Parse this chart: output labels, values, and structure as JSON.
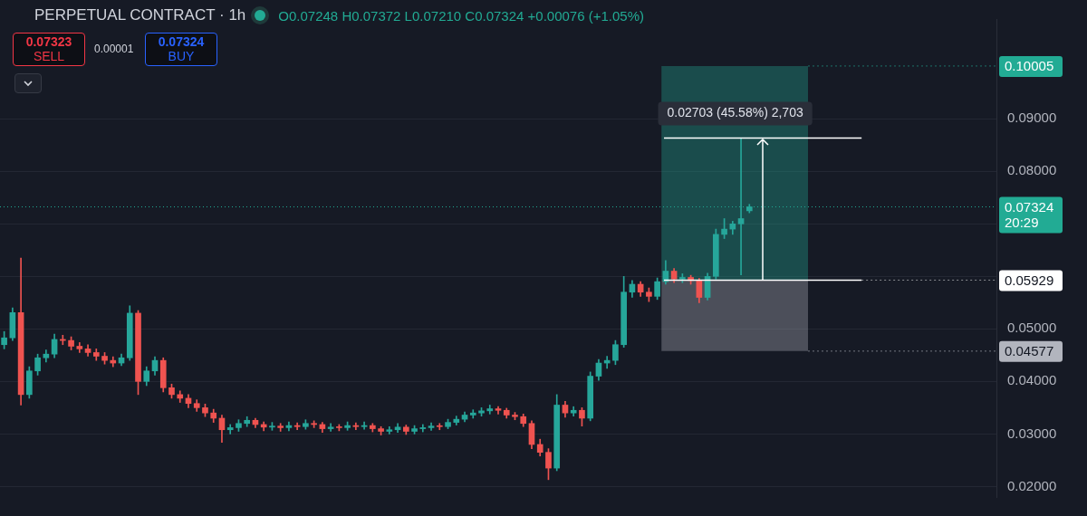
{
  "chart_data": {
    "type": "candlestick",
    "title": "PERPETUAL CONTRACT · 1h",
    "categories": [
      null,
      null,
      null,
      null,
      null,
      null,
      null,
      null,
      null,
      null,
      null,
      null,
      null,
      null,
      null,
      null,
      null,
      null,
      null,
      null,
      null,
      null,
      null,
      null,
      null,
      null,
      null,
      null,
      null,
      null,
      null,
      null,
      null,
      null,
      null,
      null,
      null,
      null,
      null,
      null,
      null,
      null,
      null,
      null,
      null,
      null,
      null,
      null,
      null,
      null,
      null,
      null,
      null,
      null,
      null,
      null,
      null,
      null,
      null,
      null,
      null,
      null,
      null,
      null,
      null,
      null,
      null,
      null,
      null,
      null,
      null,
      null,
      null,
      null,
      null,
      null,
      null,
      null,
      null,
      null,
      null,
      null,
      null,
      null,
      null,
      null,
      null,
      null,
      null,
      null,
      null,
      null,
      null,
      null,
      null,
      null,
      null,
      null,
      null,
      null,
      null,
      null,
      null,
      null,
      null,
      null,
      null,
      null,
      null,
      null,
      null,
      null,
      null,
      null,
      null,
      null,
      null,
      null,
      null
    ],
    "ohlc": [
      [
        0.047,
        0.0495,
        0.0462,
        0.0483
      ],
      [
        0.0483,
        0.054,
        0.0478,
        0.0531
      ],
      [
        0.0531,
        0.0635,
        0.0355,
        0.0375
      ],
      [
        0.0375,
        0.0428,
        0.0368,
        0.042
      ],
      [
        0.042,
        0.0452,
        0.0412,
        0.0445
      ],
      [
        0.0445,
        0.046,
        0.0437,
        0.0452
      ],
      [
        0.0452,
        0.049,
        0.0445,
        0.048
      ],
      [
        0.048,
        0.0488,
        0.047,
        0.0478
      ],
      [
        0.0478,
        0.0485,
        0.046,
        0.0467
      ],
      [
        0.0467,
        0.0474,
        0.0455,
        0.0462
      ],
      [
        0.0462,
        0.047,
        0.0448,
        0.0455
      ],
      [
        0.0455,
        0.0462,
        0.044,
        0.0448
      ],
      [
        0.0448,
        0.0455,
        0.0433,
        0.044
      ],
      [
        0.044,
        0.0447,
        0.0428,
        0.0435
      ],
      [
        0.0435,
        0.0452,
        0.043,
        0.0445
      ],
      [
        0.0445,
        0.0544,
        0.044,
        0.053
      ],
      [
        0.053,
        0.0535,
        0.0375,
        0.04
      ],
      [
        0.04,
        0.0428,
        0.0392,
        0.042
      ],
      [
        0.042,
        0.0447,
        0.0412,
        0.044
      ],
      [
        0.044,
        0.0445,
        0.038,
        0.0388
      ],
      [
        0.0388,
        0.0395,
        0.0368,
        0.0375
      ],
      [
        0.0375,
        0.0382,
        0.036,
        0.0368
      ],
      [
        0.0368,
        0.0375,
        0.035,
        0.0358
      ],
      [
        0.0358,
        0.0365,
        0.0343,
        0.035
      ],
      [
        0.035,
        0.0357,
        0.0333,
        0.034
      ],
      [
        0.034,
        0.0347,
        0.0322,
        0.033
      ],
      [
        0.033,
        0.0336,
        0.0284,
        0.0308
      ],
      [
        0.0308,
        0.0318,
        0.03,
        0.0312
      ],
      [
        0.0312,
        0.0327,
        0.0305,
        0.032
      ],
      [
        0.032,
        0.0333,
        0.0314,
        0.0326
      ],
      [
        0.0326,
        0.033,
        0.0312,
        0.0318
      ],
      [
        0.0318,
        0.0323,
        0.0306,
        0.0313
      ],
      [
        0.0313,
        0.0322,
        0.0307,
        0.0315
      ],
      [
        0.0315,
        0.032,
        0.0305,
        0.0312
      ],
      [
        0.0312,
        0.0323,
        0.0306,
        0.0316
      ],
      [
        0.0316,
        0.0321,
        0.0308,
        0.0314
      ],
      [
        0.0314,
        0.0327,
        0.0309,
        0.032
      ],
      [
        0.032,
        0.0325,
        0.0312,
        0.0318
      ],
      [
        0.0318,
        0.0322,
        0.0303,
        0.031
      ],
      [
        0.031,
        0.032,
        0.0305,
        0.0313
      ],
      [
        0.0313,
        0.0318,
        0.0306,
        0.0312
      ],
      [
        0.0312,
        0.0323,
        0.0307,
        0.0316
      ],
      [
        0.0316,
        0.0321,
        0.0308,
        0.0314
      ],
      [
        0.0314,
        0.0323,
        0.0309,
        0.0316
      ],
      [
        0.0316,
        0.032,
        0.0304,
        0.031
      ],
      [
        0.031,
        0.0314,
        0.0298,
        0.0305
      ],
      [
        0.0305,
        0.0314,
        0.03,
        0.0308
      ],
      [
        0.0308,
        0.032,
        0.0303,
        0.0313
      ],
      [
        0.0313,
        0.0317,
        0.0299,
        0.0305
      ],
      [
        0.0305,
        0.0316,
        0.03,
        0.031
      ],
      [
        0.031,
        0.0318,
        0.0304,
        0.0312
      ],
      [
        0.0312,
        0.0321,
        0.0307,
        0.0315
      ],
      [
        0.0315,
        0.032,
        0.0308,
        0.0314
      ],
      [
        0.0314,
        0.0328,
        0.031,
        0.0322
      ],
      [
        0.0322,
        0.0334,
        0.0317,
        0.0328
      ],
      [
        0.0328,
        0.0342,
        0.0323,
        0.0336
      ],
      [
        0.0336,
        0.0346,
        0.033,
        0.034
      ],
      [
        0.034,
        0.035,
        0.0334,
        0.0344
      ],
      [
        0.0344,
        0.0355,
        0.0338,
        0.0348
      ],
      [
        0.0348,
        0.0352,
        0.0338,
        0.0345
      ],
      [
        0.0345,
        0.0349,
        0.033,
        0.0336
      ],
      [
        0.0336,
        0.0341,
        0.0327,
        0.0333
      ],
      [
        0.0333,
        0.0338,
        0.0314,
        0.032
      ],
      [
        0.032,
        0.0325,
        0.0272,
        0.028
      ],
      [
        0.028,
        0.029,
        0.0258,
        0.0265
      ],
      [
        0.0265,
        0.0272,
        0.0213,
        0.0235
      ],
      [
        0.0235,
        0.0375,
        0.023,
        0.0355
      ],
      [
        0.0355,
        0.0362,
        0.0332,
        0.034
      ],
      [
        0.034,
        0.0352,
        0.0334,
        0.0345
      ],
      [
        0.0345,
        0.035,
        0.0315,
        0.033
      ],
      [
        0.033,
        0.0418,
        0.0325,
        0.041
      ],
      [
        0.041,
        0.0442,
        0.0402,
        0.0435
      ],
      [
        0.0435,
        0.0448,
        0.0425,
        0.044
      ],
      [
        0.044,
        0.0478,
        0.0432,
        0.047
      ],
      [
        0.047,
        0.06,
        0.0465,
        0.057
      ],
      [
        0.057,
        0.0592,
        0.056,
        0.0585
      ],
      [
        0.0585,
        0.059,
        0.0562,
        0.057
      ],
      [
        0.057,
        0.0578,
        0.0552,
        0.0562
      ],
      [
        0.0562,
        0.0597,
        0.0556,
        0.059
      ],
      [
        0.059,
        0.063,
        0.0585,
        0.061
      ],
      [
        0.061,
        0.0615,
        0.0588,
        0.0595
      ],
      [
        0.0595,
        0.0605,
        0.0588,
        0.0598
      ],
      [
        0.0598,
        0.0602,
        0.0585,
        0.0592
      ],
      [
        0.0592,
        0.0596,
        0.055,
        0.056
      ],
      [
        0.056,
        0.0606,
        0.0555,
        0.06
      ],
      [
        0.06,
        0.069,
        0.0595,
        0.068
      ],
      [
        0.068,
        0.071,
        0.0672,
        0.069
      ],
      [
        0.069,
        0.0705,
        0.068,
        0.07
      ],
      [
        0.07,
        0.08632,
        0.0603,
        0.071
      ],
      [
        0.07248,
        0.07372,
        0.0721,
        0.07324
      ],
      null,
      null,
      null,
      null,
      null,
      null,
      null,
      null,
      null,
      null,
      null,
      null,
      null,
      null,
      null,
      null,
      null,
      null,
      null,
      null,
      null,
      null,
      null,
      null,
      null,
      null,
      null,
      null,
      null
    ],
    "ylim": [
      0.018,
      0.109
    ],
    "yticks": [
      {
        "value": 0.02,
        "label": "0.02000"
      },
      {
        "value": 0.03,
        "label": "0.03000"
      },
      {
        "value": 0.04,
        "label": "0.04000"
      },
      {
        "value": 0.05,
        "label": "0.05000"
      },
      {
        "value": 0.06,
        "label": null
      },
      {
        "value": 0.07,
        "label": null
      },
      {
        "value": 0.08,
        "label": "0.08000"
      },
      {
        "value": 0.09,
        "label": "0.09000"
      }
    ],
    "tick_labels": "y",
    "grid": "y",
    "bands": [
      {
        "axis": "y",
        "from": 0.05929,
        "to": 0.10005,
        "label": "0.10005",
        "color": "#22ab94"
      },
      {
        "axis": "y",
        "from": 0.04577,
        "to": 0.05929,
        "label": "0.04577",
        "color": "#b2b5be"
      }
    ],
    "ref_lines": [
      {
        "axis": "y",
        "value": 0.07324,
        "label": "0.07324 20:29",
        "color": "#22ab94",
        "line_style": "dotted"
      },
      {
        "axis": "y",
        "value": 0.05929,
        "label": "0.05929",
        "color": "#ffffff",
        "line_style": "solid"
      },
      {
        "axis": "y",
        "value": 0.08632,
        "color": "#ffffff",
        "line_style": "solid"
      }
    ],
    "annotations": [
      "O0.07248 H0.07372 L0.07210 C0.07324 +0.00076 (+1.05%)",
      "0.02703 (45.58%) 2,703",
      "0.07323",
      "SELL",
      "0.00001",
      "0.07324",
      "BUY"
    ]
  }
}
